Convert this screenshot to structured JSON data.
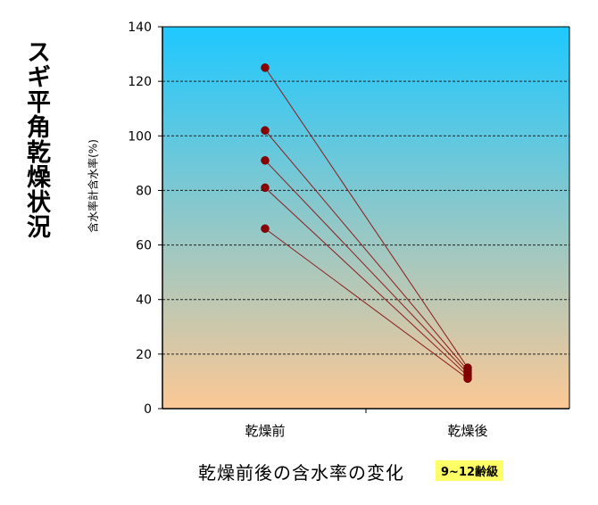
{
  "side_title": "スギ平角乾燥状況",
  "chart_data": {
    "type": "line",
    "categories": [
      "乾燥前",
      "乾燥後"
    ],
    "series": [
      {
        "values": [
          125,
          15
        ]
      },
      {
        "values": [
          102,
          14
        ]
      },
      {
        "values": [
          91,
          13
        ]
      },
      {
        "values": [
          81,
          12
        ]
      },
      {
        "values": [
          66,
          11
        ]
      }
    ],
    "ylabel": "含水率計含水率(%)",
    "xlabel": "乾燥前後の含水率の変化",
    "note": "9~12齢級",
    "ylim": [
      0,
      140
    ],
    "yticks": [
      0,
      20,
      40,
      60,
      80,
      100,
      120,
      140
    ],
    "grid": true,
    "background_gradient": [
      "#1ec8ff",
      "#fcc895"
    ],
    "line_color": "#8b1a1a",
    "point_color": "#8b0000"
  }
}
